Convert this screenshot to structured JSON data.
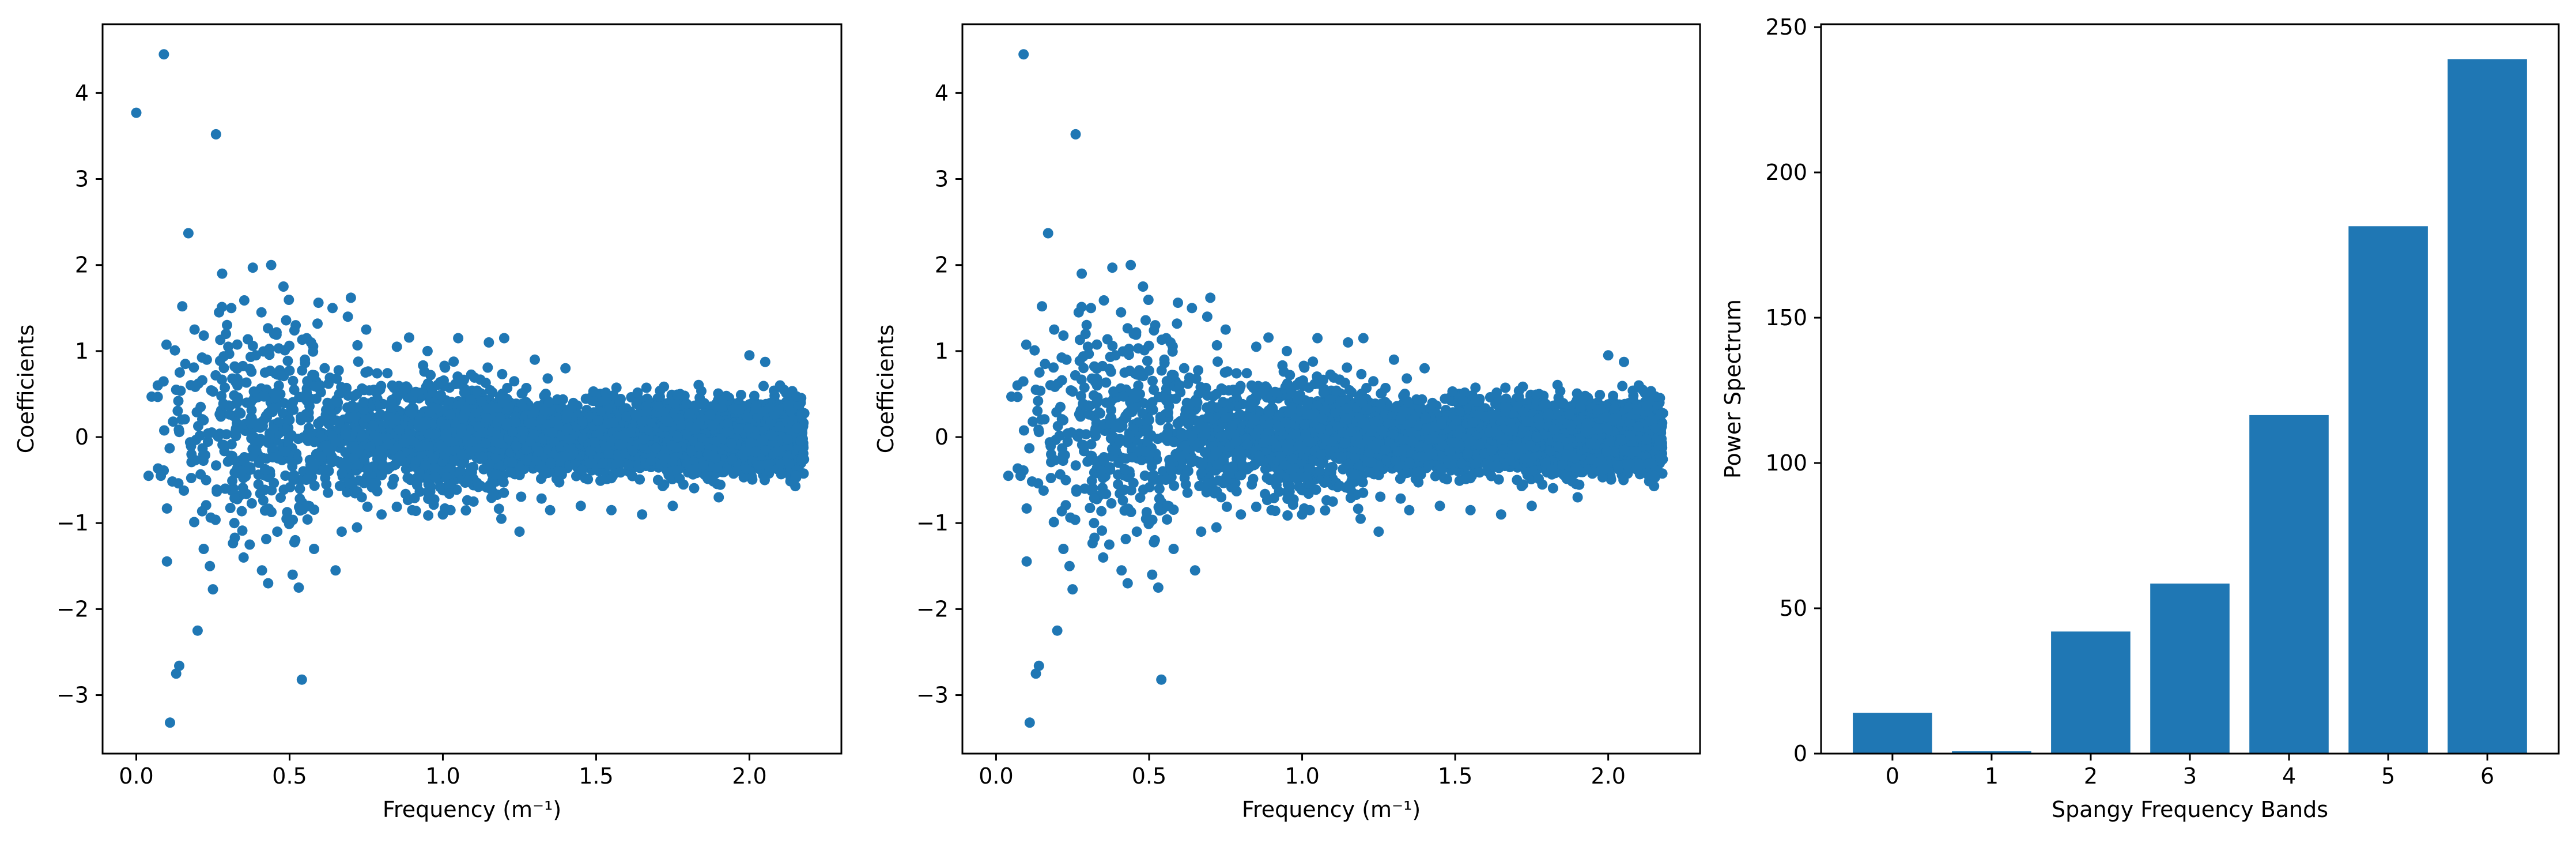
{
  "chart_data": [
    {
      "type": "scatter",
      "xlabel": "Frequency (m⁻¹)",
      "ylabel": "Coefficients",
      "xlim": [
        -0.11,
        2.3
      ],
      "ylim": [
        -3.68,
        4.8
      ],
      "xticks": [
        0.0,
        0.5,
        1.0,
        1.5,
        2.0
      ],
      "xtick_labels": [
        "0.0",
        "0.5",
        "1.0",
        "1.5",
        "2.0"
      ],
      "yticks": [
        -3,
        -2,
        -1,
        0,
        1,
        2,
        3,
        4
      ],
      "ytick_labels": [
        "−3",
        "−2",
        "−1",
        "0",
        "1",
        "2",
        "3",
        "4"
      ],
      "color": "#1f77b4",
      "grid": false,
      "points": [
        [
          0.0,
          3.77
        ],
        [
          0.09,
          4.45
        ],
        [
          0.26,
          3.52
        ],
        [
          0.17,
          2.37
        ],
        [
          0.28,
          1.9
        ],
        [
          0.38,
          1.97
        ],
        [
          0.44,
          2.0
        ],
        [
          0.11,
          -3.32
        ],
        [
          0.14,
          -2.66
        ],
        [
          0.13,
          -2.75
        ],
        [
          0.2,
          -2.25
        ],
        [
          0.54,
          -2.82
        ],
        [
          0.25,
          -1.77
        ],
        [
          0.05,
          0.47
        ],
        [
          0.07,
          0.6
        ],
        [
          0.04,
          -0.45
        ],
        [
          0.08,
          -0.45
        ],
        [
          0.12,
          0.18
        ],
        [
          0.1,
          -0.83
        ],
        [
          0.13,
          0.55
        ],
        [
          0.15,
          1.52
        ],
        [
          0.16,
          0.85
        ],
        [
          0.18,
          -0.2
        ],
        [
          0.19,
          1.25
        ],
        [
          0.21,
          0.35
        ],
        [
          0.22,
          -1.3
        ],
        [
          0.23,
          0.9
        ],
        [
          0.24,
          -1.5
        ],
        [
          0.27,
          1.45
        ],
        [
          0.29,
          -0.6
        ],
        [
          0.3,
          1.05
        ],
        [
          0.31,
          1.5
        ],
        [
          0.32,
          -1.0
        ],
        [
          0.33,
          0.6
        ],
        [
          0.35,
          -1.4
        ],
        [
          0.36,
          0.4
        ],
        [
          0.37,
          -1.25
        ],
        [
          0.39,
          0.95
        ],
        [
          0.4,
          -0.3
        ],
        [
          0.41,
          -1.55
        ],
        [
          0.42,
          0.75
        ],
        [
          0.43,
          -1.7
        ],
        [
          0.45,
          1.2
        ],
        [
          0.46,
          -1.1
        ],
        [
          0.47,
          0.5
        ],
        [
          0.48,
          1.75
        ],
        [
          0.49,
          -0.95
        ],
        [
          0.5,
          0.2
        ],
        [
          0.51,
          -1.6
        ],
        [
          0.52,
          1.3
        ],
        [
          0.53,
          -1.75
        ],
        [
          0.55,
          0.9
        ],
        [
          0.56,
          -0.8
        ],
        [
          0.57,
          1.1
        ],
        [
          0.58,
          -1.3
        ],
        [
          0.6,
          0.6
        ],
        [
          0.62,
          -0.55
        ],
        [
          0.64,
          1.5
        ],
        [
          0.65,
          -1.55
        ],
        [
          0.67,
          -1.1
        ],
        [
          0.69,
          1.4
        ],
        [
          0.7,
          1.62
        ],
        [
          0.72,
          -1.05
        ],
        [
          0.75,
          1.25
        ],
        [
          0.8,
          -0.9
        ],
        [
          0.85,
          1.05
        ],
        [
          0.9,
          -0.85
        ],
        [
          0.95,
          1.0
        ],
        [
          1.0,
          -0.9
        ],
        [
          1.05,
          1.15
        ],
        [
          1.1,
          -0.75
        ],
        [
          1.15,
          1.1
        ],
        [
          1.2,
          1.15
        ],
        [
          1.25,
          -1.1
        ],
        [
          1.3,
          0.9
        ],
        [
          1.35,
          -0.85
        ],
        [
          1.4,
          0.8
        ],
        [
          1.45,
          -0.8
        ],
        [
          1.55,
          -0.85
        ],
        [
          1.65,
          -0.9
        ],
        [
          1.75,
          -0.8
        ],
        [
          1.9,
          -0.7
        ],
        [
          2.0,
          0.95
        ],
        [
          2.05,
          -0.5
        ],
        [
          2.1,
          0.6
        ],
        [
          2.15,
          -0.45
        ]
      ]
    },
    {
      "type": "scatter",
      "xlabel": "Frequency (m⁻¹)",
      "ylabel": "Coefficients",
      "xlim": [
        -0.11,
        2.3
      ],
      "ylim": [
        -3.68,
        4.8
      ],
      "xticks": [
        0.0,
        0.5,
        1.0,
        1.5,
        2.0
      ],
      "xtick_labels": [
        "0.0",
        "0.5",
        "1.0",
        "1.5",
        "2.0"
      ],
      "yticks": [
        -3,
        -2,
        -1,
        0,
        1,
        2,
        3,
        4
      ],
      "ytick_labels": [
        "−3",
        "−2",
        "−1",
        "0",
        "1",
        "2",
        "3",
        "4"
      ],
      "color": "#1f77b4",
      "grid": false,
      "points": [
        [
          0.09,
          4.45
        ],
        [
          0.26,
          3.52
        ],
        [
          0.17,
          2.37
        ],
        [
          0.28,
          1.9
        ],
        [
          0.38,
          1.97
        ],
        [
          0.44,
          2.0
        ],
        [
          0.11,
          -3.32
        ],
        [
          0.14,
          -2.66
        ],
        [
          0.13,
          -2.75
        ],
        [
          0.2,
          -2.25
        ],
        [
          0.54,
          -2.82
        ],
        [
          0.25,
          -1.77
        ],
        [
          0.05,
          0.47
        ],
        [
          0.07,
          0.6
        ],
        [
          0.04,
          -0.45
        ],
        [
          0.08,
          -0.45
        ],
        [
          0.12,
          0.18
        ],
        [
          0.1,
          -0.83
        ],
        [
          0.13,
          0.55
        ],
        [
          0.15,
          1.52
        ],
        [
          0.16,
          0.85
        ],
        [
          0.18,
          -0.2
        ],
        [
          0.19,
          1.25
        ],
        [
          0.21,
          0.35
        ],
        [
          0.22,
          -1.3
        ],
        [
          0.23,
          0.9
        ],
        [
          0.24,
          -1.5
        ],
        [
          0.27,
          1.45
        ],
        [
          0.29,
          -0.6
        ],
        [
          0.3,
          1.05
        ],
        [
          0.31,
          1.5
        ],
        [
          0.32,
          -1.0
        ],
        [
          0.33,
          0.6
        ],
        [
          0.35,
          -1.4
        ],
        [
          0.36,
          0.4
        ],
        [
          0.37,
          -1.25
        ],
        [
          0.39,
          0.95
        ],
        [
          0.4,
          -0.3
        ],
        [
          0.41,
          -1.55
        ],
        [
          0.42,
          0.75
        ],
        [
          0.43,
          -1.7
        ],
        [
          0.45,
          1.2
        ],
        [
          0.46,
          -1.1
        ],
        [
          0.47,
          0.5
        ],
        [
          0.48,
          1.75
        ],
        [
          0.49,
          -0.95
        ],
        [
          0.5,
          0.2
        ],
        [
          0.51,
          -1.6
        ],
        [
          0.52,
          1.3
        ],
        [
          0.53,
          -1.75
        ],
        [
          0.55,
          0.9
        ],
        [
          0.56,
          -0.8
        ],
        [
          0.57,
          1.1
        ],
        [
          0.58,
          -1.3
        ],
        [
          0.6,
          0.6
        ],
        [
          0.62,
          -0.55
        ],
        [
          0.64,
          1.5
        ],
        [
          0.65,
          -1.55
        ],
        [
          0.67,
          -1.1
        ],
        [
          0.69,
          1.4
        ],
        [
          0.7,
          1.62
        ],
        [
          0.72,
          -1.05
        ],
        [
          0.75,
          1.25
        ],
        [
          0.8,
          -0.9
        ],
        [
          0.85,
          1.05
        ],
        [
          0.9,
          -0.85
        ],
        [
          0.95,
          1.0
        ],
        [
          1.0,
          -0.9
        ],
        [
          1.05,
          1.15
        ],
        [
          1.1,
          -0.75
        ],
        [
          1.15,
          1.1
        ],
        [
          1.2,
          1.15
        ],
        [
          1.25,
          -1.1
        ],
        [
          1.3,
          0.9
        ],
        [
          1.35,
          -0.85
        ],
        [
          1.4,
          0.8
        ],
        [
          1.45,
          -0.8
        ],
        [
          1.55,
          -0.85
        ],
        [
          1.65,
          -0.9
        ],
        [
          1.75,
          -0.8
        ],
        [
          1.9,
          -0.7
        ],
        [
          2.0,
          0.95
        ],
        [
          2.05,
          -0.5
        ],
        [
          2.1,
          0.6
        ],
        [
          2.15,
          -0.45
        ]
      ]
    },
    {
      "type": "bar",
      "xlabel": "Spangy Frequency Bands",
      "ylabel": "Power Spectrum",
      "categories": [
        "0",
        "1",
        "2",
        "3",
        "4",
        "5",
        "6"
      ],
      "values": [
        14.0,
        0.8,
        42.0,
        58.5,
        116.5,
        181.5,
        239.0
      ],
      "ylim": [
        0,
        251
      ],
      "yticks": [
        0,
        50,
        100,
        150,
        200,
        250
      ],
      "ytick_labels": [
        "0",
        "50",
        "100",
        "150",
        "200",
        "250"
      ],
      "color": "#1f77b4",
      "grid": false
    }
  ]
}
